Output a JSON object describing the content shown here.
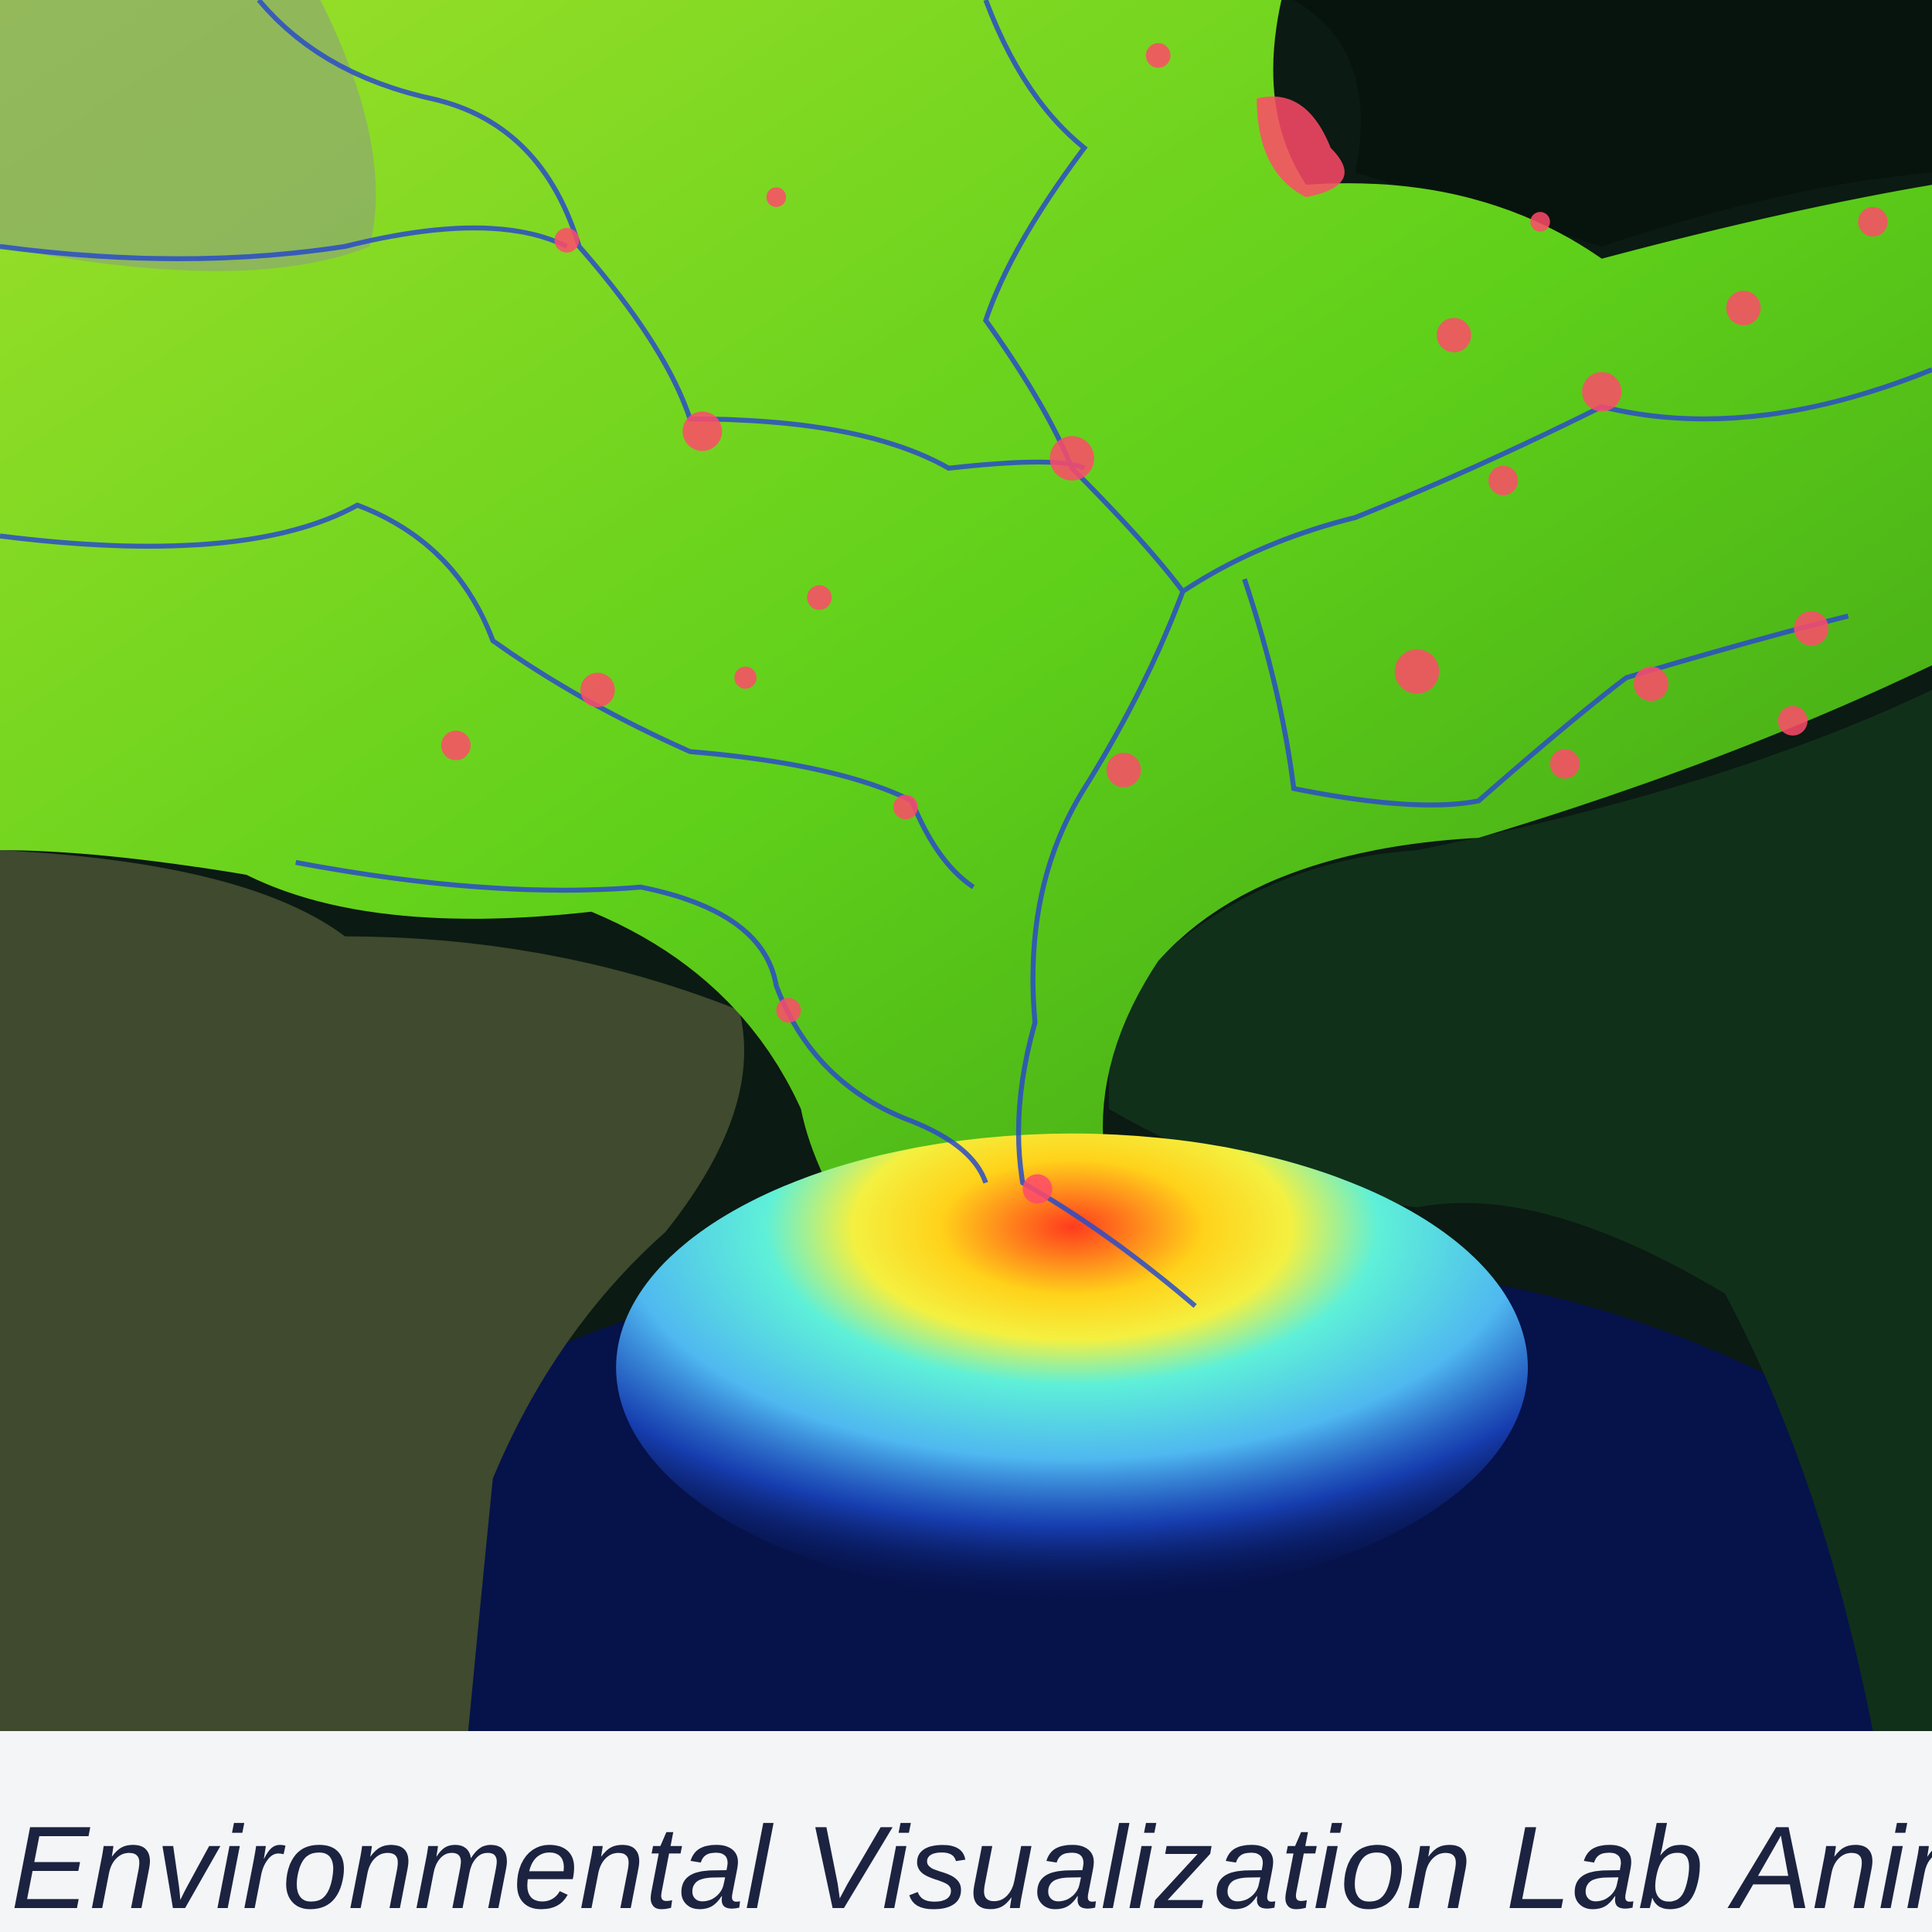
{
  "caption": "Environmental Visualization Lab Anima"
}
